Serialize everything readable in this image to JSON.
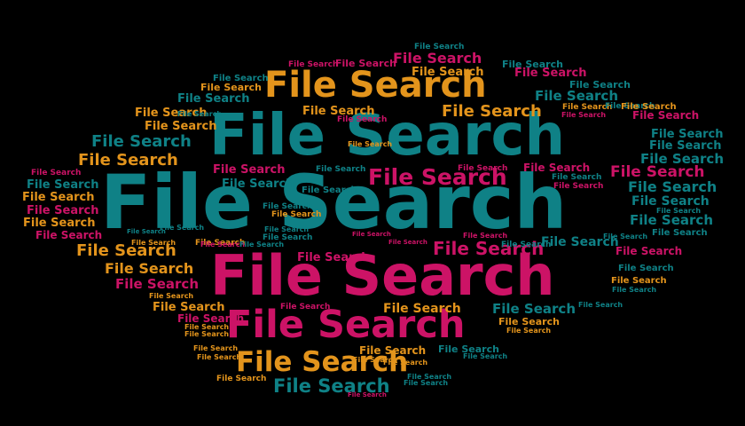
{
  "word": "File Search",
  "colors": {
    "background": "#000000",
    "teal": "#0f8186",
    "magenta": "#cc1366",
    "orange": "#e3941c"
  }
}
